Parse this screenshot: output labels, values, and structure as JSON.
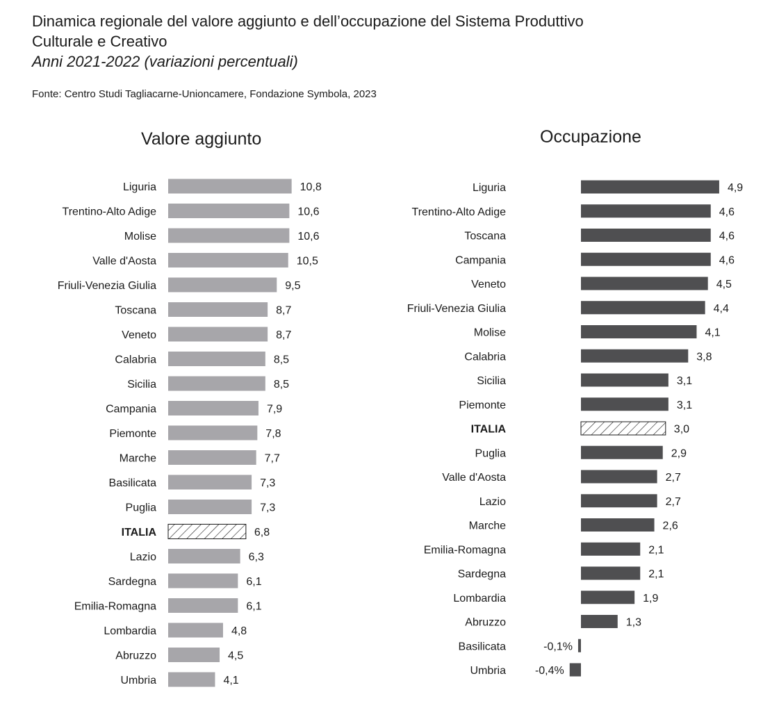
{
  "header": {
    "title_line1": "Dinamica regionale del valore aggiunto e dell’occupazione del Sistema Produttivo",
    "title_line2": "Culturale e Creativo",
    "subtitle": "Anni 2021-2022 (variazioni percentuali)",
    "source": "Fonte: Centro Studi Tagliacarne-Unioncamere, Fondazione Symbola, 2023"
  },
  "colors": {
    "valore_bar": "#a7a6aa",
    "occupazione_bar": "#4f4f51",
    "hatch": "#1a1a1a"
  },
  "chart_data": [
    {
      "type": "bar",
      "orientation": "horizontal",
      "title": "Valore aggiunto",
      "categories": [
        "Liguria",
        "Trentino-Alto Adige",
        "Molise",
        "Valle d'Aosta",
        "Friuli-Venezia Giulia",
        "Toscana",
        "Veneto",
        "Calabria",
        "Sicilia",
        "Campania",
        "Piemonte",
        "Marche",
        "Basilicata",
        "Puglia",
        "ITALIA",
        "Lazio",
        "Sardegna",
        "Emilia-Romagna",
        "Lombardia",
        "Abruzzo",
        "Umbria"
      ],
      "values": [
        10.8,
        10.6,
        10.6,
        10.5,
        9.5,
        8.7,
        8.7,
        8.5,
        8.5,
        7.9,
        7.8,
        7.7,
        7.3,
        7.3,
        6.8,
        6.3,
        6.1,
        6.1,
        4.8,
        4.5,
        4.1
      ],
      "labels": [
        "10,8",
        "10,6",
        "10,6",
        "10,5",
        "9,5",
        "8,7",
        "8,7",
        "8,5",
        "8,5",
        "7,9",
        "7,8",
        "7,7",
        "7,3",
        "7,3",
        "6,8",
        "6,3",
        "6,1",
        "6,1",
        "4,8",
        "4,5",
        "4,1"
      ],
      "highlight": "ITALIA"
    },
    {
      "type": "bar",
      "orientation": "horizontal",
      "title": "Occupazione",
      "categories": [
        "Liguria",
        "Trentino-Alto Adige",
        "Toscana",
        "Campania",
        "Veneto",
        "Friuli-Venezia Giulia",
        "Molise",
        "Calabria",
        "Sicilia",
        "Piemonte",
        "ITALIA",
        "Puglia",
        "Valle d'Aosta",
        "Lazio",
        "Marche",
        "Emilia-Romagna",
        "Sardegna",
        "Lombardia",
        "Abruzzo",
        "Basilicata",
        "Umbria"
      ],
      "values": [
        4.9,
        4.6,
        4.6,
        4.6,
        4.5,
        4.4,
        4.1,
        3.8,
        3.1,
        3.1,
        3.0,
        2.9,
        2.7,
        2.7,
        2.6,
        2.1,
        2.1,
        1.9,
        1.3,
        -0.1,
        -0.4
      ],
      "labels": [
        "4,9",
        "4,6",
        "4,6",
        "4,6",
        "4,5",
        "4,4",
        "4,1",
        "3,8",
        "3,1",
        "3,1",
        "3,0",
        "2,9",
        "2,7",
        "2,7",
        "2,6",
        "2,1",
        "2,1",
        "1,9",
        "1,3",
        "-0,1%",
        "-0,4%"
      ],
      "highlight": "ITALIA"
    }
  ]
}
